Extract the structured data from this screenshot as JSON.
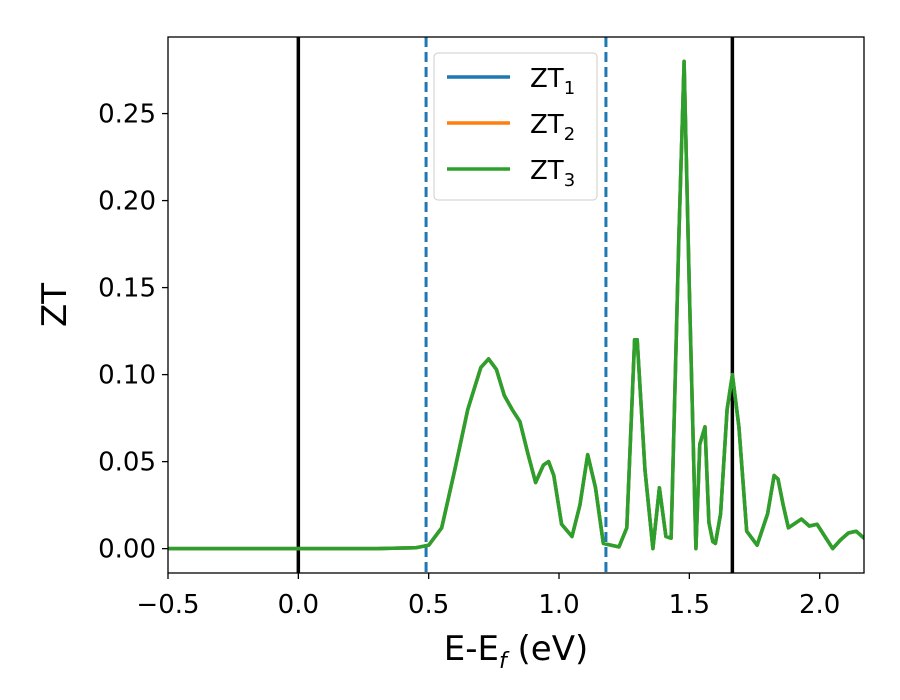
{
  "chart_data": {
    "type": "line",
    "xlabel": "E-E",
    "xlabel_sub": "f",
    "xlabel_unit": " (eV)",
    "ylabel": "ZT",
    "xlim": [
      -0.5,
      2.17
    ],
    "ylim": [
      -0.014,
      0.294
    ],
    "x_ticks": [
      -0.5,
      0.0,
      0.5,
      1.0,
      1.5,
      2.0
    ],
    "x_tick_labels": [
      "−0.5",
      "0.0",
      "0.5",
      "1.0",
      "1.5",
      "2.0"
    ],
    "y_ticks": [
      0.0,
      0.05,
      0.1,
      0.15,
      0.2,
      0.25
    ],
    "y_tick_labels": [
      "0.00",
      "0.05",
      "0.10",
      "0.15",
      "0.20",
      "0.25"
    ],
    "grid": false,
    "legend_position": "top-center",
    "vertical_lines": [
      {
        "x": 0.0,
        "style": "solid",
        "color": "#000000"
      },
      {
        "x": 1.665,
        "style": "solid",
        "color": "#000000"
      },
      {
        "x": 0.49,
        "style": "dashed",
        "color": "#1f77b4"
      },
      {
        "x": 1.18,
        "style": "dashed",
        "color": "#1f77b4"
      }
    ],
    "series": [
      {
        "name": "ZT",
        "name_sub": "1",
        "color": "#1f77b4",
        "x": [
          -0.5,
          0.0,
          0.3,
          0.45,
          0.5,
          0.55,
          0.6,
          0.65,
          0.7,
          0.73,
          0.76,
          0.79,
          0.82,
          0.85,
          0.88,
          0.91,
          0.94,
          0.96,
          0.98,
          1.01,
          1.05,
          1.08,
          1.11,
          1.14,
          1.17,
          1.2,
          1.23,
          1.26,
          1.29,
          1.3,
          1.33,
          1.36,
          1.385,
          1.41,
          1.43,
          1.46,
          1.48,
          1.5,
          1.525,
          1.54,
          1.56,
          1.575,
          1.59,
          1.6,
          1.62,
          1.645,
          1.665,
          1.69,
          1.72,
          1.76,
          1.8,
          1.825,
          1.84,
          1.86,
          1.88,
          1.9,
          1.93,
          1.96,
          1.99,
          2.02,
          2.05,
          2.08,
          2.11,
          2.14,
          2.17
        ],
        "y": [
          0.0,
          0.0,
          0.0,
          0.0005,
          0.002,
          0.012,
          0.045,
          0.08,
          0.104,
          0.109,
          0.103,
          0.088,
          0.08,
          0.073,
          0.055,
          0.038,
          0.048,
          0.05,
          0.042,
          0.014,
          0.007,
          0.025,
          0.054,
          0.035,
          0.003,
          0.002,
          0.001,
          0.012,
          0.12,
          0.12,
          0.045,
          0.0,
          0.035,
          0.007,
          0.006,
          0.18,
          0.28,
          0.15,
          0.0,
          0.06,
          0.07,
          0.015,
          0.004,
          0.003,
          0.02,
          0.08,
          0.1,
          0.07,
          0.01,
          0.002,
          0.02,
          0.042,
          0.04,
          0.025,
          0.012,
          0.014,
          0.017,
          0.013,
          0.014,
          0.007,
          0.0,
          0.005,
          0.009,
          0.01,
          0.006
        ]
      },
      {
        "name": "ZT",
        "name_sub": "2",
        "color": "#ff7f0e",
        "x": [
          -0.5,
          0.0,
          0.3,
          0.45,
          0.5,
          0.55,
          0.6,
          0.65,
          0.7,
          0.73,
          0.76,
          0.79,
          0.82,
          0.85,
          0.88,
          0.91,
          0.94,
          0.96,
          0.98,
          1.01,
          1.05,
          1.08,
          1.11,
          1.14,
          1.17,
          1.2,
          1.23,
          1.26,
          1.29,
          1.3,
          1.33,
          1.36,
          1.385,
          1.41,
          1.43,
          1.46,
          1.48,
          1.5,
          1.525,
          1.54,
          1.56,
          1.575,
          1.59,
          1.6,
          1.62,
          1.645,
          1.665,
          1.69,
          1.72,
          1.76,
          1.8,
          1.825,
          1.84,
          1.86,
          1.88,
          1.9,
          1.93,
          1.96,
          1.99,
          2.02,
          2.05,
          2.08,
          2.11,
          2.14,
          2.17
        ],
        "y": [
          0.0,
          0.0,
          0.0,
          0.0005,
          0.002,
          0.012,
          0.045,
          0.08,
          0.104,
          0.109,
          0.103,
          0.088,
          0.08,
          0.073,
          0.055,
          0.038,
          0.048,
          0.05,
          0.042,
          0.014,
          0.007,
          0.025,
          0.054,
          0.035,
          0.003,
          0.002,
          0.001,
          0.012,
          0.12,
          0.12,
          0.045,
          0.0,
          0.035,
          0.007,
          0.006,
          0.18,
          0.28,
          0.15,
          0.0,
          0.06,
          0.07,
          0.015,
          0.004,
          0.003,
          0.02,
          0.08,
          0.1,
          0.07,
          0.01,
          0.002,
          0.02,
          0.042,
          0.04,
          0.025,
          0.012,
          0.014,
          0.017,
          0.013,
          0.014,
          0.007,
          0.0,
          0.005,
          0.009,
          0.01,
          0.006
        ]
      },
      {
        "name": "ZT",
        "name_sub": "3",
        "color": "#2ca02c",
        "x": [
          -0.5,
          0.0,
          0.3,
          0.45,
          0.5,
          0.55,
          0.6,
          0.65,
          0.7,
          0.73,
          0.76,
          0.79,
          0.82,
          0.85,
          0.88,
          0.91,
          0.94,
          0.96,
          0.98,
          1.01,
          1.05,
          1.08,
          1.11,
          1.14,
          1.17,
          1.2,
          1.23,
          1.26,
          1.29,
          1.3,
          1.33,
          1.36,
          1.385,
          1.41,
          1.43,
          1.46,
          1.48,
          1.5,
          1.525,
          1.54,
          1.56,
          1.575,
          1.59,
          1.6,
          1.62,
          1.645,
          1.665,
          1.69,
          1.72,
          1.76,
          1.8,
          1.825,
          1.84,
          1.86,
          1.88,
          1.9,
          1.93,
          1.96,
          1.99,
          2.02,
          2.05,
          2.08,
          2.11,
          2.14,
          2.17
        ],
        "y": [
          0.0,
          0.0,
          0.0,
          0.0005,
          0.002,
          0.012,
          0.045,
          0.08,
          0.104,
          0.109,
          0.103,
          0.088,
          0.08,
          0.073,
          0.055,
          0.038,
          0.048,
          0.05,
          0.042,
          0.014,
          0.007,
          0.025,
          0.054,
          0.035,
          0.003,
          0.002,
          0.001,
          0.012,
          0.12,
          0.12,
          0.045,
          0.0,
          0.035,
          0.007,
          0.006,
          0.18,
          0.28,
          0.15,
          0.0,
          0.06,
          0.07,
          0.015,
          0.004,
          0.003,
          0.02,
          0.08,
          0.1,
          0.07,
          0.01,
          0.002,
          0.02,
          0.042,
          0.04,
          0.025,
          0.012,
          0.014,
          0.017,
          0.013,
          0.014,
          0.007,
          0.0,
          0.005,
          0.009,
          0.01,
          0.006
        ]
      }
    ]
  }
}
